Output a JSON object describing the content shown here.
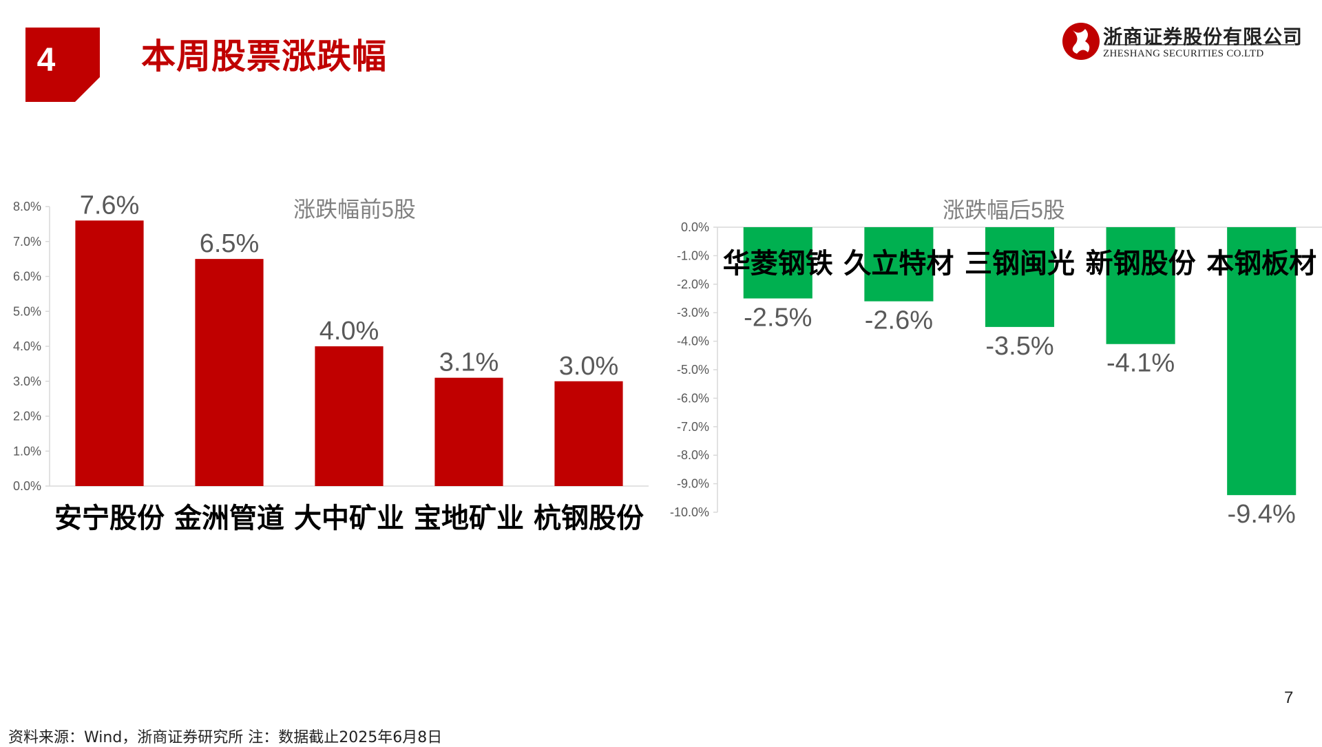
{
  "header": {
    "section_number": "4",
    "title": "本周股票涨跌幅"
  },
  "logo": {
    "company_name": "浙商证券股份有限公司",
    "company_name_en": "ZHESHANG SECURITIES CO.LTD"
  },
  "colors": {
    "brand_red": "#c00000",
    "bar_red": "#c00000",
    "bar_green": "#00b050"
  },
  "chart_data": [
    {
      "type": "bar",
      "title": "涨跌幅前5股",
      "categories": [
        "安宁股份",
        "金洲管道",
        "大中矿业",
        "宝地矿业",
        "杭钢股份"
      ],
      "values": [
        7.6,
        6.5,
        4.0,
        3.1,
        3.0
      ],
      "data_labels": [
        "7.6%",
        "6.5%",
        "4.0%",
        "3.1%",
        "3.0%"
      ],
      "ylim": [
        0,
        8
      ],
      "yticks": [
        "0.0%",
        "1.0%",
        "2.0%",
        "3.0%",
        "4.0%",
        "5.0%",
        "6.0%",
        "7.0%",
        "8.0%"
      ],
      "unit": "%",
      "grid": false,
      "color": "#c00000"
    },
    {
      "type": "bar",
      "title": "涨跌幅后5股",
      "categories": [
        "华菱钢铁",
        "久立特材",
        "三钢闽光",
        "新钢股份",
        "本钢板材"
      ],
      "values": [
        -2.5,
        -2.6,
        -3.5,
        -4.1,
        -9.4
      ],
      "data_labels": [
        "-2.5%",
        "-2.6%",
        "-3.5%",
        "-4.1%",
        "-9.4%"
      ],
      "ylim": [
        -10,
        0
      ],
      "yticks": [
        "0.0%",
        "-1.0%",
        "-2.0%",
        "-3.0%",
        "-4.0%",
        "-5.0%",
        "-6.0%",
        "-7.0%",
        "-8.0%",
        "-9.0%",
        "-10.0%"
      ],
      "unit": "%",
      "grid": false,
      "color": "#00b050"
    }
  ],
  "page_number": "7",
  "footer": {
    "source_note": "资料来源：Wind，浙商证券研究所    注：数据截止2025年6月8日"
  }
}
